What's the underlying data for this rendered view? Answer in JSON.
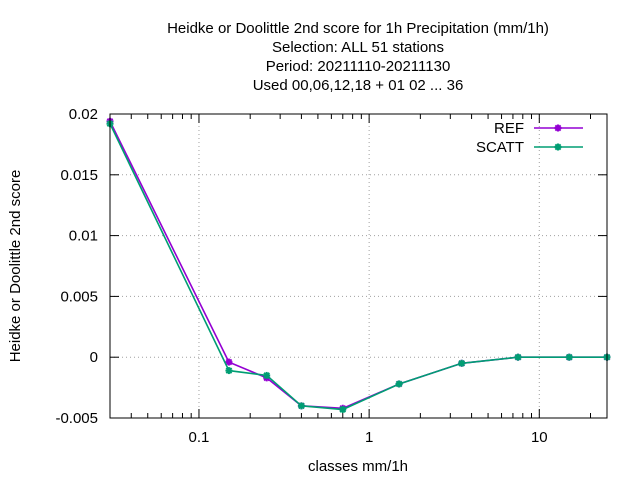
{
  "chart_data": {
    "type": "line",
    "title_lines": [
      "Heidke or Doolittle 2nd score  for 1h Precipitation (mm/1h)",
      "Selection: ALL     51 stations",
      "Period: 20211110-20211130",
      "Used  00,06,12,18 + 01 02 ... 36"
    ],
    "xlabel": "classes mm/1h",
    "ylabel": "Heidke or Doolittle 2nd score",
    "xscale": "log",
    "xlim": [
      0.03,
      25
    ],
    "ylim": [
      -0.005,
      0.02
    ],
    "x_ticks": [
      {
        "value": 0.1,
        "label": "0.1"
      },
      {
        "value": 1,
        "label": "1"
      },
      {
        "value": 10,
        "label": "10"
      }
    ],
    "y_ticks": [
      {
        "value": -0.005,
        "label": "-0.005"
      },
      {
        "value": 0,
        "label": "0"
      },
      {
        "value": 0.005,
        "label": "0.005"
      },
      {
        "value": 0.01,
        "label": "0.01"
      },
      {
        "value": 0.015,
        "label": "0.015"
      },
      {
        "value": 0.02,
        "label": "0.02"
      }
    ],
    "grid": true,
    "legend_position": "top-right",
    "x": [
      0.03,
      0.15,
      0.25,
      0.4,
      0.7,
      1.5,
      3.5,
      7.5,
      15,
      25
    ],
    "series": [
      {
        "name": "REF",
        "color": "#9400d3",
        "values": [
          0.0194,
          -0.0004,
          -0.0017,
          -0.004,
          -0.0042,
          -0.0022,
          -0.0005,
          0.0,
          0.0,
          0.0
        ]
      },
      {
        "name": "SCATT",
        "color": "#009e73",
        "values": [
          0.0192,
          -0.0011,
          -0.0015,
          -0.004,
          -0.0043,
          -0.0022,
          -0.0005,
          0.0,
          0.0,
          0.0
        ]
      }
    ]
  }
}
